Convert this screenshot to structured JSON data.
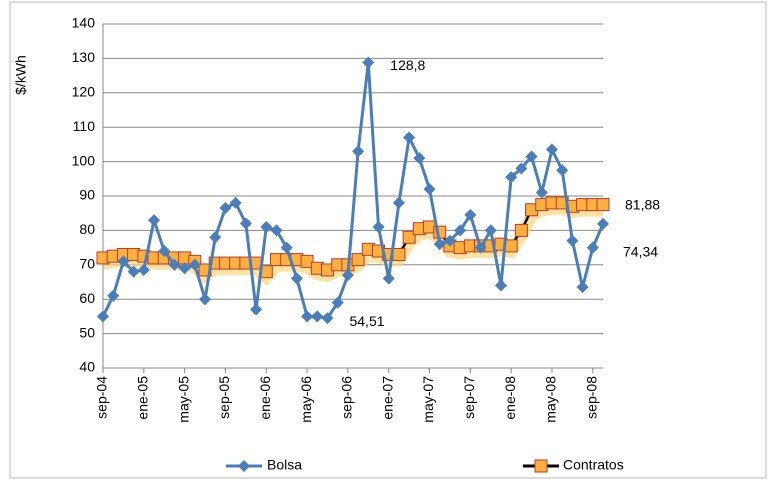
{
  "chart_data": {
    "type": "line",
    "ylabel": "$/kWh",
    "categories": [
      "sep-04",
      null,
      null,
      null,
      "ene-05",
      null,
      null,
      null,
      "may-05",
      null,
      null,
      null,
      "sep-05",
      null,
      null,
      null,
      "ene-06",
      null,
      null,
      null,
      "may-06",
      null,
      null,
      null,
      "sep-06",
      null,
      null,
      null,
      "ene-07",
      null,
      null,
      null,
      "may-07",
      null,
      null,
      null,
      "sep-07",
      null,
      null,
      null,
      "ene-08",
      null,
      null,
      null,
      "may-08",
      null,
      null,
      null,
      "sep-08",
      null
    ],
    "series": [
      {
        "name": "Bolsa",
        "color": "#4a7ebb",
        "values": [
          55,
          61,
          71,
          68,
          68.5,
          83,
          74,
          70,
          69,
          70,
          60,
          78,
          86.5,
          88,
          82,
          57,
          81,
          80,
          75,
          66,
          55,
          55,
          54.51,
          59,
          67,
          103,
          128.8,
          81,
          66,
          88,
          107,
          101,
          92,
          76,
          77,
          80,
          84.5,
          75,
          80,
          64,
          95.5,
          98,
          101.5,
          91,
          103.5,
          97.5,
          77,
          63.5,
          75,
          81.88
        ],
        "value_labels": [
          null,
          null,
          null,
          null,
          null,
          null,
          null,
          null,
          null,
          null,
          null,
          null,
          null,
          null,
          null,
          null,
          null,
          null,
          null,
          null,
          null,
          null,
          "54,51",
          null,
          null,
          null,
          "128,8",
          null,
          null,
          null,
          null,
          null,
          null,
          null,
          null,
          null,
          null,
          null,
          null,
          null,
          null,
          null,
          null,
          null,
          null,
          null,
          null,
          null,
          null,
          "81,88"
        ]
      },
      {
        "name": "Contratos",
        "color": "#000000",
        "values": [
          72,
          72.5,
          73,
          73,
          72.5,
          72,
          72,
          72,
          72,
          71,
          68.5,
          70.5,
          70.5,
          70.5,
          70.5,
          70.5,
          68,
          71.5,
          71.5,
          71.5,
          71,
          69,
          68.5,
          70,
          70,
          71.5,
          74.5,
          74,
          73,
          73,
          78,
          80.5,
          81,
          79.5,
          75.5,
          75,
          75.5,
          75.5,
          75.5,
          76,
          75.5,
          80,
          86,
          87.5,
          88,
          88,
          87,
          87.5,
          87.5,
          87.5
        ]
      }
    ],
    "annotations": [
      "74,34"
    ],
    "ylim": [
      40,
      140
    ],
    "yticks": [
      40,
      50,
      60,
      70,
      80,
      90,
      100,
      110,
      120,
      130,
      140
    ],
    "grid": true,
    "legend": "bottom"
  }
}
